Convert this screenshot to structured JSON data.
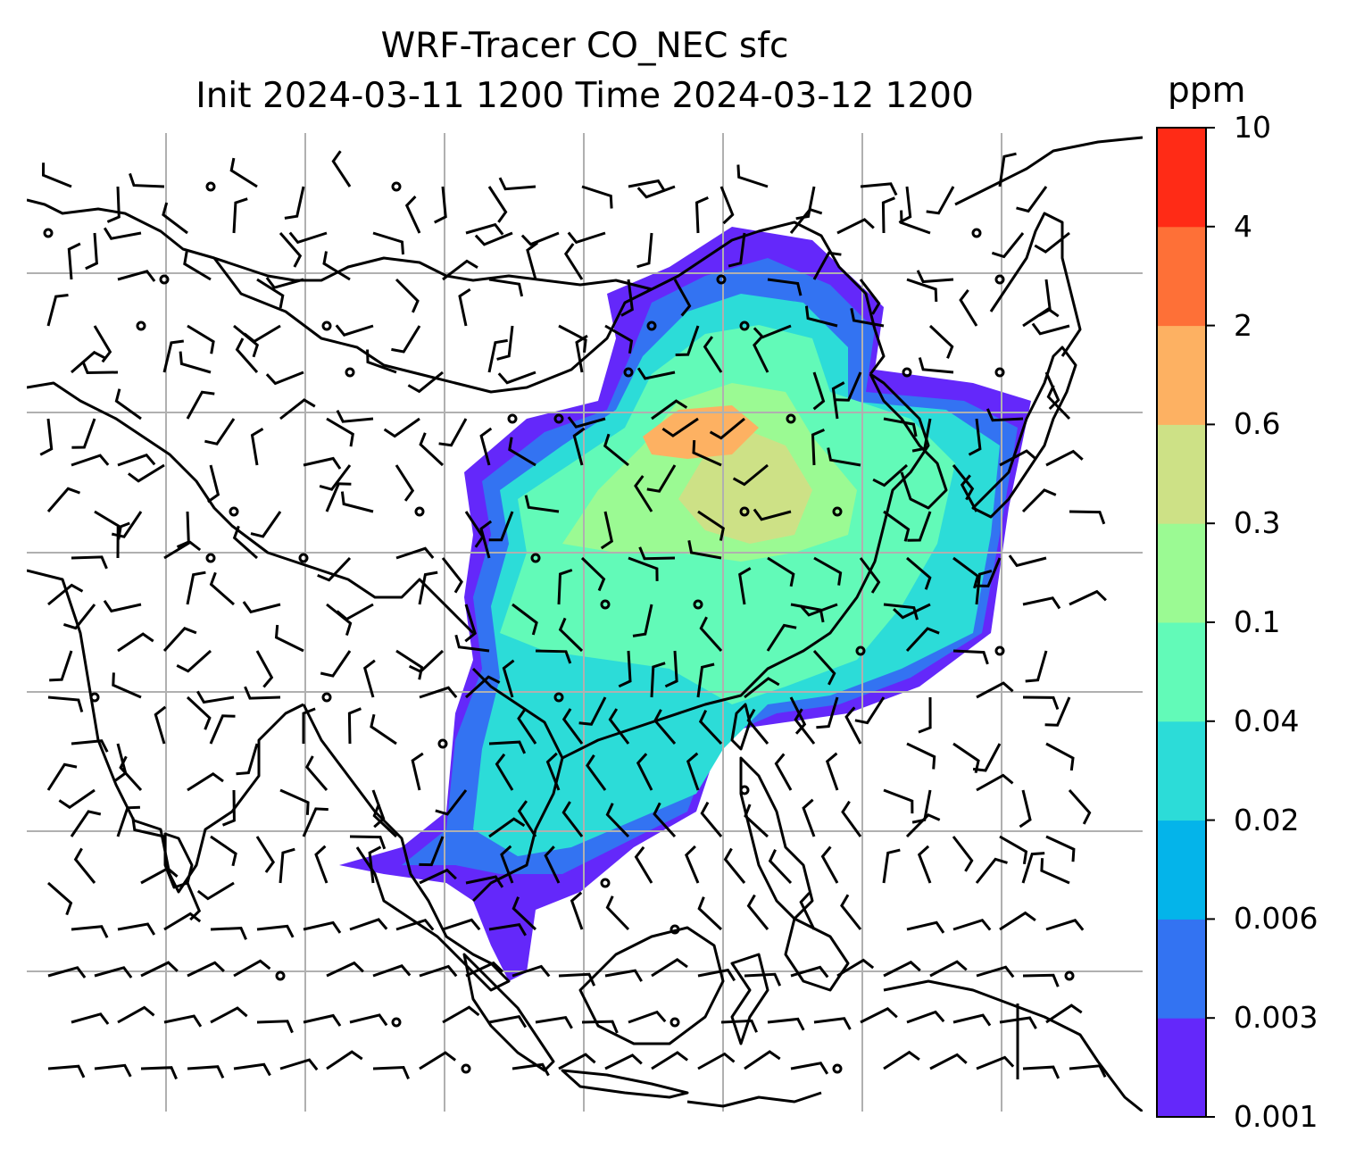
{
  "title": {
    "line1": "WRF-Tracer CO_NEC sfc",
    "line2": "Init 2024-03-11 1200 Time 2024-03-12 1200"
  },
  "colorbar": {
    "unit": "ppm",
    "levels": [
      "0.001",
      "0.003",
      "0.006",
      "0.02",
      "0.04",
      "0.1",
      "0.3",
      "0.6",
      "2",
      "4",
      "10"
    ],
    "colors": [
      "#6428fa",
      "#3373f2",
      "#04b4ea",
      "#2cdcd8",
      "#62fab8",
      "#9bfa93",
      "#cde186",
      "#fdb162",
      "#fe7037",
      "#ff2b16"
    ]
  },
  "map": {
    "background": "#ffffff",
    "gridline_color": "#b0b0b0",
    "coastline_color": "#000000",
    "wind_barbs": true,
    "calm_circles": true
  }
}
